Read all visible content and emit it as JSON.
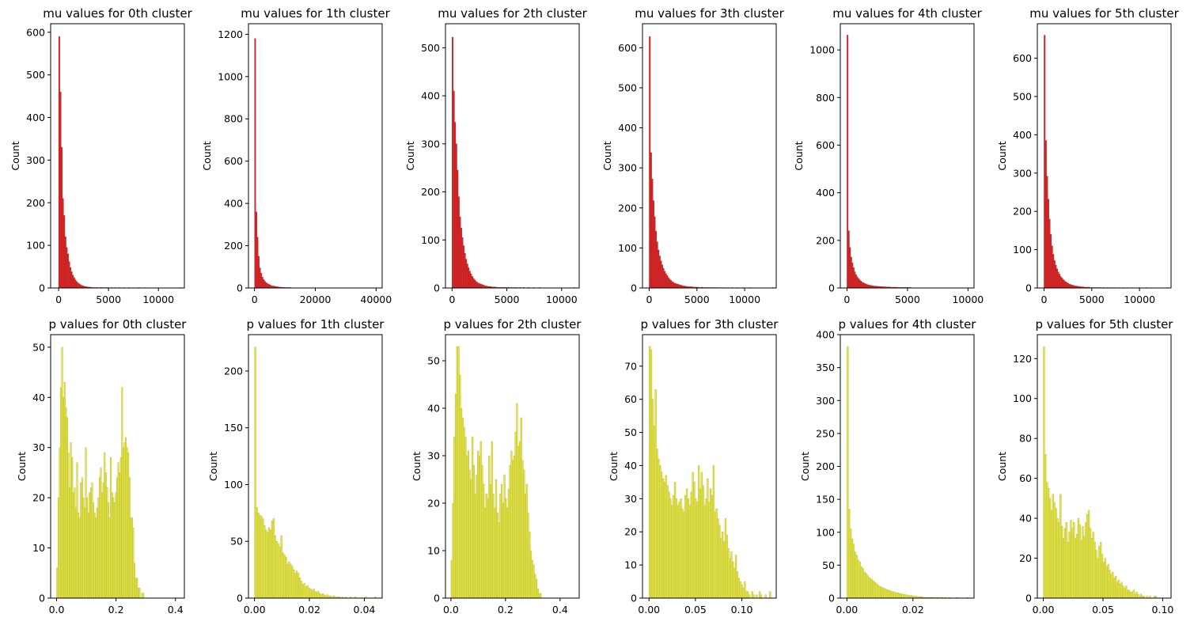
{
  "colors": {
    "mu_bar": "#d62728",
    "mu_edge": "#b51e1e",
    "p_bar": "#dede30",
    "p_edge": "#b7b71f",
    "axis": "#000000"
  },
  "chart_data": [
    {
      "type": "bar",
      "title": "mu values for 0th cluster",
      "xlabel": "",
      "ylabel": "Count",
      "xlim": [
        -800,
        12600
      ],
      "ylim": [
        0,
        620
      ],
      "xticks": [
        0,
        5000,
        10000
      ],
      "xtick_labels": [
        "0",
        "5000",
        "10000"
      ],
      "yticks": [
        0,
        100,
        200,
        300,
        400,
        500,
        600
      ],
      "bin_start": 0,
      "bin_width": 125,
      "values": [
        590,
        460,
        330,
        210,
        170,
        120,
        95,
        80,
        62,
        48,
        38,
        30,
        24,
        19,
        15,
        12,
        10,
        8,
        6,
        5,
        4,
        3,
        3,
        2,
        2,
        2,
        1,
        1,
        1,
        1,
        1,
        1,
        0,
        1,
        1,
        0,
        1,
        0,
        1,
        1,
        0,
        0,
        1,
        0,
        0,
        1,
        0,
        0,
        1,
        0,
        0,
        0,
        1,
        0,
        0,
        0,
        1,
        0,
        0,
        0,
        0,
        0,
        0,
        0,
        1,
        0,
        0,
        0,
        0,
        1,
        0,
        0,
        0,
        0,
        0,
        0,
        0,
        0,
        0,
        0,
        0,
        0,
        0,
        0,
        0,
        0,
        0,
        0,
        0,
        0,
        0,
        0,
        0,
        0,
        0,
        0,
        0,
        1
      ]
    },
    {
      "type": "bar",
      "title": "mu values for 1th cluster",
      "xlabel": "",
      "ylabel": "Count",
      "xlim": [
        -2000,
        42000
      ],
      "ylim": [
        0,
        1250
      ],
      "xticks": [
        0,
        20000,
        40000
      ],
      "xtick_labels": [
        "0",
        "20000",
        "40000"
      ],
      "yticks": [
        0,
        200,
        400,
        600,
        800,
        1000,
        1200
      ],
      "bin_start": 0,
      "bin_width": 400,
      "values": [
        1180,
        360,
        240,
        150,
        95,
        70,
        52,
        40,
        32,
        26,
        21,
        18,
        15,
        12,
        10,
        9,
        8,
        7,
        6,
        5,
        4,
        4,
        3,
        3,
        3,
        2,
        2,
        2,
        2,
        2,
        1,
        1,
        1,
        1,
        1,
        1,
        1,
        1,
        0,
        1,
        1,
        0,
        1,
        0,
        1,
        0,
        1,
        0,
        0,
        1,
        0,
        0,
        1,
        0,
        0,
        0,
        1,
        0,
        0,
        0,
        0,
        1,
        0,
        0,
        0,
        0,
        0,
        1,
        0,
        0,
        0,
        0,
        0,
        0,
        0,
        1,
        0,
        0,
        0,
        0,
        0,
        0,
        0,
        0,
        0,
        0,
        0,
        0,
        0,
        0,
        0,
        0,
        0,
        0,
        0,
        0,
        0,
        0,
        0,
        1
      ]
    },
    {
      "type": "bar",
      "title": "mu values for 2th cluster",
      "xlabel": "",
      "ylabel": "Count",
      "xlim": [
        -600,
        11600
      ],
      "ylim": [
        0,
        550
      ],
      "xticks": [
        0,
        5000,
        10000
      ],
      "xtick_labels": [
        "0",
        "5000",
        "10000"
      ],
      "yticks": [
        0,
        100,
        200,
        300,
        400,
        500
      ],
      "bin_start": 0,
      "bin_width": 112,
      "values": [
        522,
        410,
        345,
        300,
        245,
        190,
        148,
        125,
        105,
        88,
        72,
        60,
        50,
        42,
        35,
        29,
        24,
        20,
        17,
        14,
        12,
        10,
        9,
        8,
        7,
        6,
        5,
        4,
        4,
        3,
        3,
        3,
        2,
        2,
        2,
        2,
        1,
        1,
        1,
        1,
        1,
        1,
        1,
        1,
        0,
        1,
        1,
        0,
        1,
        0,
        1,
        0,
        1,
        0,
        0,
        1,
        0,
        0,
        1,
        0,
        0,
        0,
        1,
        0,
        0,
        0,
        1,
        0,
        0,
        0,
        0,
        1,
        0,
        0,
        0,
        0,
        0,
        0,
        0,
        0,
        0,
        0,
        0,
        0,
        0,
        0,
        0,
        0,
        0,
        0,
        0,
        0,
        0,
        0,
        0,
        0,
        0,
        0,
        0,
        1
      ]
    },
    {
      "type": "bar",
      "title": "mu values for 3th cluster",
      "xlabel": "",
      "ylabel": "Count",
      "xlim": [
        -700,
        13300
      ],
      "ylim": [
        0,
        660
      ],
      "xticks": [
        0,
        5000,
        10000
      ],
      "xtick_labels": [
        "0",
        "5000",
        "10000"
      ],
      "yticks": [
        0,
        100,
        200,
        300,
        400,
        500,
        600
      ],
      "bin_start": 0,
      "bin_width": 130,
      "values": [
        628,
        338,
        272,
        218,
        178,
        142,
        115,
        95,
        80,
        68,
        58,
        49,
        42,
        36,
        31,
        26,
        22,
        19,
        16,
        14,
        12,
        11,
        10,
        9,
        8,
        7,
        6,
        5,
        5,
        4,
        4,
        3,
        3,
        3,
        3,
        2,
        2,
        2,
        2,
        2,
        1,
        1,
        2,
        1,
        1,
        1,
        1,
        1,
        1,
        1,
        1,
        0,
        1,
        1,
        1,
        0,
        1,
        0,
        1,
        0,
        1,
        0,
        0,
        1,
        0,
        0,
        1,
        0,
        0,
        0,
        1,
        0,
        0,
        0,
        0,
        1,
        0,
        0,
        0,
        0,
        0,
        1,
        0,
        0,
        0,
        0,
        0,
        0,
        0,
        0,
        0,
        0,
        0,
        0,
        0,
        0,
        0,
        0,
        0,
        1
      ]
    },
    {
      "type": "bar",
      "title": "mu values for 4th cluster",
      "xlabel": "",
      "ylabel": "Count",
      "xlim": [
        -550,
        10500
      ],
      "ylim": [
        0,
        1110
      ],
      "xticks": [
        0,
        5000,
        10000
      ],
      "xtick_labels": [
        "0",
        "5000",
        "10000"
      ],
      "yticks": [
        0,
        200,
        400,
        600,
        800,
        1000
      ],
      "bin_start": 0,
      "bin_width": 100,
      "values": [
        1062,
        240,
        170,
        130,
        105,
        85,
        68,
        56,
        47,
        40,
        34,
        29,
        25,
        22,
        19,
        17,
        15,
        13,
        12,
        11,
        10,
        9,
        8,
        8,
        7,
        7,
        6,
        6,
        6,
        5,
        5,
        5,
        4,
        4,
        4,
        4,
        3,
        3,
        3,
        3,
        3,
        3,
        2,
        2,
        2,
        2,
        2,
        2,
        2,
        2,
        2,
        2,
        2,
        1,
        1,
        1,
        1,
        1,
        1,
        1,
        1,
        1,
        1,
        1,
        1,
        1,
        1,
        1,
        1,
        1,
        1,
        1,
        0,
        1,
        1,
        1,
        0,
        1,
        0,
        1,
        1,
        0,
        1,
        0,
        0,
        1,
        0,
        1,
        0,
        0,
        1,
        0,
        0,
        0,
        1,
        0,
        0,
        0,
        0,
        1
      ]
    },
    {
      "type": "bar",
      "title": "mu values for 5th cluster",
      "xlabel": "",
      "ylabel": "Count",
      "xlim": [
        -700,
        13300
      ],
      "ylim": [
        0,
        690
      ],
      "xticks": [
        0,
        5000,
        10000
      ],
      "xtick_labels": [
        "0",
        "5000",
        "10000"
      ],
      "yticks": [
        0,
        100,
        200,
        300,
        400,
        500,
        600
      ],
      "bin_start": 0,
      "bin_width": 130,
      "values": [
        660,
        385,
        292,
        232,
        180,
        140,
        110,
        88,
        72,
        60,
        50,
        42,
        36,
        30,
        26,
        22,
        19,
        16,
        14,
        12,
        10,
        9,
        8,
        7,
        6,
        5,
        5,
        4,
        4,
        3,
        3,
        3,
        2,
        2,
        2,
        2,
        2,
        1,
        1,
        1,
        1,
        1,
        1,
        1,
        1,
        1,
        0,
        1,
        1,
        0,
        1,
        1,
        0,
        1,
        0,
        1,
        0,
        1,
        0,
        0,
        1,
        0,
        0,
        1,
        0,
        0,
        0,
        1,
        0,
        0,
        0,
        1,
        0,
        0,
        0,
        0,
        1,
        0,
        0,
        0,
        0,
        0,
        1,
        0,
        0,
        0,
        0,
        0,
        0,
        0,
        0,
        0,
        0,
        0,
        0,
        0,
        0,
        0,
        0,
        1
      ]
    },
    {
      "type": "bar",
      "title": "p values for 0th cluster",
      "xlabel": "",
      "ylabel": "Count",
      "xlim": [
        -0.02,
        0.43
      ],
      "ylim": [
        0,
        52.5
      ],
      "xticks": [
        0.0,
        0.2,
        0.4
      ],
      "xtick_labels": [
        "0.0",
        "0.2",
        "0.4"
      ],
      "yticks": [
        0,
        10,
        20,
        30,
        40,
        50
      ],
      "bin_start": 0.0,
      "bin_width": 0.0042,
      "values": [
        6,
        20,
        30,
        42,
        50,
        40,
        43,
        38,
        36,
        29,
        22,
        31,
        28,
        21,
        22,
        18,
        27,
        17,
        16,
        23,
        24,
        20,
        18,
        30,
        20,
        17,
        21,
        22,
        23,
        19,
        17,
        16,
        18,
        20,
        24,
        26,
        21,
        23,
        29,
        25,
        22,
        19,
        16,
        28,
        21,
        20,
        19,
        21,
        24,
        27,
        25,
        28,
        42,
        30,
        31,
        32,
        30,
        29,
        24,
        16,
        16,
        14,
        7,
        4,
        4,
        2,
        2,
        0,
        1,
        1
      ]
    },
    {
      "type": "bar",
      "title": "p values for 1th cluster",
      "xlabel": "",
      "ylabel": "Count",
      "xlim": [
        -0.0022,
        0.0465
      ],
      "ylim": [
        0,
        232
      ],
      "xticks": [
        0.0,
        0.02,
        0.04
      ],
      "xtick_labels": [
        "0.00",
        "0.02",
        "0.04"
      ],
      "yticks": [
        0,
        50,
        100,
        150,
        200
      ],
      "bin_start": 0.0,
      "bin_width": 0.00056,
      "values": [
        221,
        80,
        75,
        73,
        72,
        70,
        64,
        60,
        58,
        62,
        60,
        68,
        70,
        55,
        50,
        48,
        45,
        55,
        40,
        38,
        36,
        30,
        32,
        30,
        28,
        25,
        22,
        24,
        22,
        18,
        15,
        12,
        13,
        10,
        11,
        9,
        8,
        7,
        8,
        6,
        5,
        6,
        4,
        3,
        4,
        3,
        2,
        3,
        2,
        2,
        1,
        2,
        1,
        1,
        1,
        1,
        0,
        1,
        0,
        1,
        0,
        0,
        1,
        0,
        0,
        1,
        0,
        0,
        0,
        0,
        0,
        0,
        1,
        0,
        0,
        0,
        0,
        0,
        1,
        0
      ]
    },
    {
      "type": "bar",
      "title": "p values for 2th cluster",
      "xlabel": "",
      "ylabel": "Count",
      "xlim": [
        -0.02,
        0.47
      ],
      "ylim": [
        0,
        55.5
      ],
      "xticks": [
        0.0,
        0.2,
        0.4
      ],
      "xtick_labels": [
        "0.0",
        "0.2",
        "0.4"
      ],
      "yticks": [
        0,
        10,
        20,
        30,
        40,
        50
      ],
      "bin_start": 0.0,
      "bin_width": 0.0051,
      "values": [
        8,
        20,
        34,
        43,
        53,
        53,
        47,
        40,
        38,
        36,
        34,
        30,
        31,
        27,
        25,
        34,
        28,
        22,
        26,
        31,
        30,
        33,
        28,
        24,
        19,
        22,
        21,
        30,
        24,
        33,
        22,
        19,
        25,
        18,
        16,
        22,
        24,
        20,
        26,
        21,
        19,
        23,
        28,
        31,
        29,
        30,
        35,
        41,
        32,
        33,
        38,
        29,
        27,
        22,
        24,
        18,
        14,
        10,
        8,
        7,
        5,
        4,
        2,
        1,
        1
      ]
    },
    {
      "type": "bar",
      "title": "p values for 3th cluster",
      "xlabel": "",
      "ylabel": "Count",
      "xlim": [
        -0.007,
        0.137
      ],
      "ylim": [
        0,
        79.5
      ],
      "xticks": [
        0.0,
        0.05,
        0.1
      ],
      "xtick_labels": [
        "0.00",
        "0.05",
        "0.10"
      ],
      "yticks": [
        0,
        10,
        20,
        30,
        40,
        50,
        60,
        70
      ],
      "bin_start": 0.0,
      "bin_width": 0.0016,
      "values": [
        76,
        75,
        60,
        52,
        63,
        45,
        42,
        40,
        38,
        36,
        35,
        37,
        34,
        32,
        30,
        28,
        31,
        35,
        30,
        28,
        29,
        30,
        27,
        26,
        31,
        33,
        30,
        28,
        32,
        38,
        35,
        30,
        29,
        40,
        33,
        38,
        34,
        28,
        30,
        36,
        29,
        33,
        31,
        40,
        26,
        27,
        24,
        22,
        18,
        20,
        17,
        24,
        19,
        15,
        12,
        14,
        11,
        9,
        13,
        8,
        6,
        5,
        4,
        3,
        5,
        2,
        2,
        1,
        0,
        2,
        1,
        0,
        1,
        0,
        2,
        1,
        0,
        0,
        1,
        0,
        0,
        2
      ]
    },
    {
      "type": "bar",
      "title": "p values for 4th cluster",
      "xlabel": "",
      "ylabel": "Count",
      "xlim": [
        -0.002,
        0.0385
      ],
      "ylim": [
        0,
        400
      ],
      "xticks": [
        0.0,
        0.02
      ],
      "xtick_labels": [
        "0.00",
        "0.02"
      ],
      "yticks": [
        0,
        50,
        100,
        150,
        200,
        250,
        300,
        350,
        400
      ],
      "bin_start": 0.0,
      "bin_width": 0.00046,
      "values": [
        382,
        135,
        105,
        90,
        82,
        70,
        65,
        58,
        55,
        48,
        45,
        40,
        38,
        35,
        32,
        30,
        28,
        26,
        24,
        22,
        20,
        18,
        17,
        16,
        15,
        14,
        13,
        12,
        11,
        10,
        10,
        9,
        8,
        8,
        7,
        7,
        6,
        6,
        5,
        5,
        4,
        4,
        4,
        3,
        3,
        3,
        2,
        2,
        2,
        2,
        1,
        1,
        1,
        1,
        1,
        1,
        1,
        1,
        0,
        1,
        1,
        0,
        1,
        0,
        1,
        0,
        0,
        1,
        0,
        0,
        0,
        0,
        1,
        0,
        0,
        0,
        0,
        0,
        0,
        1
      ]
    },
    {
      "type": "bar",
      "title": "p values for 5th cluster",
      "xlabel": "",
      "ylabel": "Count",
      "xlim": [
        -0.005,
        0.107
      ],
      "ylim": [
        0,
        132
      ],
      "xticks": [
        0.0,
        0.05,
        0.1
      ],
      "xtick_labels": [
        "0.00",
        "0.05",
        "0.10"
      ],
      "yticks": [
        0,
        20,
        40,
        60,
        80,
        100,
        120
      ],
      "bin_start": 0.0,
      "bin_width": 0.00125,
      "values": [
        126,
        72,
        58,
        55,
        50,
        44,
        52,
        48,
        45,
        40,
        38,
        52,
        36,
        30,
        35,
        38,
        28,
        33,
        39,
        35,
        38,
        30,
        32,
        40,
        37,
        29,
        36,
        31,
        38,
        42,
        44,
        35,
        30,
        33,
        28,
        24,
        20,
        26,
        28,
        22,
        18,
        20,
        16,
        17,
        14,
        12,
        13,
        10,
        11,
        8,
        9,
        7,
        8,
        6,
        5,
        6,
        4,
        4,
        3,
        3,
        4,
        2,
        3,
        2,
        1,
        2,
        1,
        1,
        0,
        1,
        0,
        1,
        0,
        0,
        1,
        1
      ]
    }
  ]
}
